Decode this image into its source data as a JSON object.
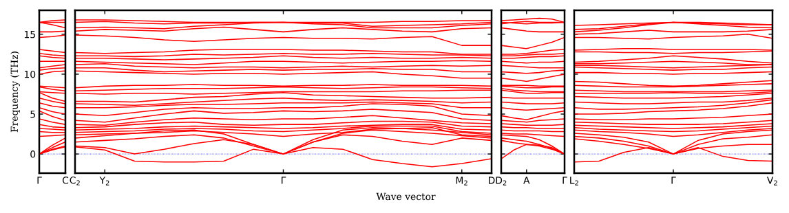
{
  "chart_data": [
    {
      "type": "line",
      "ylabel": "Frequency (THz)",
      "categories": [
        "Γ",
        null,
        "C"
      ],
      "ylim": [
        -2.4,
        18
      ],
      "yticks": [
        0,
        5,
        10,
        15
      ],
      "grid": false,
      "marker": "none",
      "line_style": "solid",
      "ref_lines": [
        {
          "axis": "y",
          "value": 0,
          "color": "#0000ff",
          "line_style": "dotted"
        }
      ],
      "series": [
        {
          "color": "#ff0000",
          "values": [
            0,
            0.5,
            0.9
          ]
        },
        {
          "color": "#ff0000",
          "values": [
            0,
            0.6,
            1.0
          ]
        },
        {
          "color": "#ff0000",
          "values": [
            0,
            0.8,
            1.5
          ]
        },
        {
          "color": "#ff0000",
          "values": [
            0,
            1.1,
            2.0
          ]
        },
        {
          "color": "#ff0000",
          "values": [
            2.2,
            2.3,
            2.4
          ]
        },
        {
          "color": "#ff0000",
          "values": [
            2.8,
            2.7,
            2.7
          ]
        },
        {
          "color": "#ff0000",
          "values": [
            3.2,
            3.1,
            3.0
          ]
        },
        {
          "color": "#ff0000",
          "values": [
            3.7,
            3.4,
            3.3
          ]
        },
        {
          "color": "#ff0000",
          "values": [
            4.4,
            4.0,
            3.7
          ]
        },
        {
          "color": "#ff0000",
          "values": [
            5.4,
            4.7,
            4.2
          ]
        },
        {
          "color": "#ff0000",
          "values": [
            5.8,
            5.3,
            5.0
          ]
        },
        {
          "color": "#ff0000",
          "values": [
            6.4,
            6.0,
            5.8
          ]
        },
        {
          "color": "#ff0000",
          "values": [
            7.0,
            6.6,
            6.3
          ]
        },
        {
          "color": "#ff0000",
          "values": [
            7.7,
            7.0,
            6.6
          ]
        },
        {
          "color": "#ff0000",
          "values": [
            7.8,
            7.7,
            7.6
          ]
        },
        {
          "color": "#ff0000",
          "values": [
            8.4,
            8.1,
            7.9
          ]
        },
        {
          "color": "#ff0000",
          "values": [
            8.5,
            8.4,
            8.3
          ]
        },
        {
          "color": "#ff0000",
          "values": [
            10.0,
            10.3,
            10.4
          ]
        },
        {
          "color": "#ff0000",
          "values": [
            10.5,
            10.7,
            10.8
          ]
        },
        {
          "color": "#ff0000",
          "values": [
            10.8,
            11.0,
            11.2
          ]
        },
        {
          "color": "#ff0000",
          "values": [
            11.6,
            11.6,
            11.6
          ]
        },
        {
          "color": "#ff0000",
          "values": [
            12.3,
            12.1,
            12.0
          ]
        },
        {
          "color": "#ff0000",
          "values": [
            12.6,
            12.4,
            12.3
          ]
        },
        {
          "color": "#ff0000",
          "values": [
            13.1,
            12.9,
            12.7
          ]
        },
        {
          "color": "#ff0000",
          "values": [
            14.6,
            14.7,
            14.9
          ]
        },
        {
          "color": "#ff0000",
          "values": [
            15.3,
            15.3,
            15.4
          ]
        },
        {
          "color": "#ff0000",
          "values": [
            16.5,
            16.2,
            15.8
          ]
        },
        {
          "color": "#ff0000",
          "values": [
            16.5,
            16.5,
            16.5
          ]
        },
        {
          "color": "#ff0000",
          "values": [
            16.5,
            16.7,
            16.8
          ]
        }
      ]
    },
    {
      "type": "line",
      "xlabel": "Wave vector",
      "categories": [
        "C$_{2}$",
        "Y$_{2}$",
        null,
        null,
        null,
        null,
        null,
        "Γ",
        null,
        null,
        null,
        null,
        null,
        "M$_{2}$",
        "D"
      ],
      "ylim": [
        -2.4,
        18
      ],
      "yticks": [
        0,
        5,
        10,
        15
      ],
      "tick_labels": "x",
      "grid": false,
      "marker": "none",
      "line_style": "solid",
      "ref_lines": [
        {
          "axis": "y",
          "value": 0,
          "color": "#0000ff",
          "line_style": "dotted"
        }
      ],
      "series": [
        {
          "color": "#ff0000",
          "values": [
            0.9,
            0.5,
            -0.9,
            -1.0,
            -1.0,
            -0.9,
            0.6,
            0,
            0.8,
            0.6,
            -0.7,
            -1.2,
            -1.6,
            -1.2,
            -0.6
          ]
        },
        {
          "color": "#ff0000",
          "values": [
            1.0,
            0.8,
            0.0,
            0.6,
            1.3,
            1.8,
            1.2,
            0,
            1.5,
            2.4,
            2.2,
            1.6,
            1.2,
            2.0,
            1.7
          ]
        },
        {
          "color": "#ff0000",
          "values": [
            1.5,
            1.7,
            1.9,
            2.2,
            2.4,
            2.0,
            1.0,
            0,
            1.5,
            2.6,
            3.0,
            2.8,
            2.6,
            2.3,
            2.0
          ]
        },
        {
          "color": "#ff0000",
          "values": [
            2.0,
            2.3,
            2.6,
            2.9,
            3.0,
            2.5,
            1.2,
            0,
            1.8,
            3.0,
            3.3,
            3.2,
            3.0,
            2.7,
            2.4
          ]
        },
        {
          "color": "#ff0000",
          "values": [
            2.4,
            2.5,
            2.6,
            2.7,
            2.9,
            2.7,
            2.5,
            2.2,
            2.5,
            2.7,
            3.1,
            3.2,
            3.3,
            2.4,
            2.2
          ]
        },
        {
          "color": "#ff0000",
          "values": [
            2.7,
            2.8,
            2.9,
            3.1,
            3.2,
            3.1,
            2.9,
            2.8,
            3.0,
            3.2,
            3.5,
            3.5,
            3.5,
            2.8,
            2.6
          ]
        },
        {
          "color": "#ff0000",
          "values": [
            3.0,
            3.1,
            3.2,
            3.4,
            3.5,
            3.4,
            3.3,
            3.2,
            3.3,
            3.5,
            3.6,
            3.7,
            3.7,
            3.1,
            3.0
          ]
        },
        {
          "color": "#ff0000",
          "values": [
            3.3,
            3.4,
            3.7,
            3.9,
            4.0,
            3.7,
            3.6,
            3.7,
            3.7,
            3.9,
            4.1,
            4.1,
            4.0,
            3.5,
            3.4
          ]
        },
        {
          "color": "#ff0000",
          "values": [
            3.7,
            3.6,
            4.0,
            4.3,
            4.5,
            4.4,
            4.3,
            4.4,
            4.4,
            4.6,
            4.8,
            4.5,
            4.2,
            3.9,
            3.8
          ]
        },
        {
          "color": "#ff0000",
          "values": [
            4.2,
            4.0,
            4.5,
            5.0,
            5.4,
            5.1,
            5.2,
            5.4,
            5.3,
            5.4,
            5.6,
            5.4,
            5.2,
            4.4,
            4.2
          ]
        },
        {
          "color": "#ff0000",
          "values": [
            5.0,
            4.8,
            5.2,
            5.6,
            5.8,
            5.7,
            5.7,
            5.8,
            5.8,
            6.0,
            6.3,
            6.2,
            6.0,
            5.0,
            4.8
          ]
        },
        {
          "color": "#ff0000",
          "values": [
            5.8,
            5.8,
            5.9,
            6.1,
            6.2,
            6.2,
            6.3,
            6.4,
            6.4,
            6.4,
            6.5,
            6.4,
            6.3,
            5.8,
            5.8
          ]
        },
        {
          "color": "#ff0000",
          "values": [
            6.3,
            6.2,
            6.1,
            6.3,
            6.5,
            6.7,
            6.9,
            7.0,
            6.8,
            6.7,
            6.8,
            6.7,
            6.6,
            6.4,
            6.5
          ]
        },
        {
          "color": "#ff0000",
          "values": [
            6.6,
            6.6,
            6.5,
            6.8,
            7.1,
            7.2,
            7.5,
            7.7,
            7.4,
            7.3,
            7.2,
            7.1,
            7.0,
            7.0,
            7.1
          ]
        },
        {
          "color": "#ff0000",
          "values": [
            7.6,
            7.5,
            7.6,
            7.6,
            7.5,
            7.6,
            7.7,
            7.8,
            7.8,
            7.8,
            7.8,
            7.9,
            7.9,
            8.0,
            8.0
          ]
        },
        {
          "color": "#ff0000",
          "values": [
            7.9,
            8.0,
            8.1,
            8.2,
            8.2,
            8.2,
            8.3,
            8.4,
            8.3,
            8.2,
            8.3,
            8.4,
            8.4,
            8.3,
            8.2
          ]
        },
        {
          "color": "#ff0000",
          "values": [
            8.3,
            8.5,
            8.6,
            8.6,
            8.7,
            8.6,
            8.6,
            8.5,
            8.6,
            8.6,
            8.7,
            8.6,
            8.6,
            8.6,
            8.5
          ]
        },
        {
          "color": "#ff0000",
          "values": [
            10.4,
            10.3,
            10.2,
            10.1,
            10.0,
            10.1,
            10.1,
            10.0,
            10.1,
            10.2,
            10.3,
            10.0,
            9.8,
            9.5,
            9.5
          ]
        },
        {
          "color": "#ff0000",
          "values": [
            10.8,
            10.8,
            10.5,
            10.3,
            10.4,
            10.5,
            10.6,
            10.5,
            10.6,
            10.6,
            10.7,
            10.6,
            10.6,
            10.3,
            10.3
          ]
        },
        {
          "color": "#ff0000",
          "values": [
            11.2,
            11.3,
            11.0,
            10.9,
            10.8,
            10.9,
            10.9,
            10.8,
            10.9,
            11.0,
            10.9,
            11.0,
            11.1,
            11.0,
            11.1
          ]
        },
        {
          "color": "#ff0000",
          "values": [
            11.6,
            11.5,
            11.4,
            11.3,
            11.2,
            11.4,
            11.6,
            11.6,
            11.5,
            11.4,
            11.5,
            11.6,
            11.6,
            11.7,
            11.6
          ]
        },
        {
          "color": "#ff0000",
          "values": [
            12.0,
            12.0,
            11.9,
            11.8,
            11.9,
            12.0,
            12.1,
            12.3,
            12.1,
            12.0,
            12.1,
            12.0,
            12.0,
            12.1,
            12.0
          ]
        },
        {
          "color": "#ff0000",
          "values": [
            12.3,
            12.3,
            12.2,
            12.3,
            12.5,
            12.4,
            12.5,
            12.6,
            12.5,
            12.5,
            12.6,
            12.5,
            12.4,
            12.4,
            12.3
          ]
        },
        {
          "color": "#ff0000",
          "values": [
            12.7,
            12.6,
            12.7,
            12.8,
            13.0,
            13.1,
            13.1,
            13.1,
            13.0,
            13.0,
            12.9,
            12.8,
            12.8,
            12.5,
            12.5
          ]
        },
        {
          "color": "#ff0000",
          "values": [
            14.9,
            14.8,
            14.6,
            14.3,
            14.1,
            14.3,
            14.5,
            14.6,
            14.5,
            14.5,
            14.4,
            14.6,
            14.7,
            13.6,
            13.6
          ]
        },
        {
          "color": "#ff0000",
          "values": [
            15.4,
            15.6,
            15.5,
            15.4,
            15.7,
            15.9,
            15.6,
            15.3,
            15.6,
            15.8,
            15.6,
            15.4,
            15.3,
            15.7,
            15.8
          ]
        },
        {
          "color": "#ff0000",
          "values": [
            15.8,
            15.9,
            15.8,
            15.7,
            16.0,
            16.2,
            16.4,
            16.5,
            16.3,
            16.2,
            15.8,
            15.8,
            15.8,
            16.1,
            16.3
          ]
        },
        {
          "color": "#ff0000",
          "values": [
            16.5,
            16.6,
            16.4,
            16.3,
            16.4,
            16.4,
            16.5,
            16.5,
            16.4,
            16.4,
            16.0,
            16.1,
            16.2,
            16.3,
            16.5
          ]
        },
        {
          "color": "#ff0000",
          "values": [
            16.8,
            16.8,
            16.7,
            16.6,
            16.5,
            16.5,
            16.5,
            16.5,
            16.5,
            16.5,
            16.5,
            16.6,
            16.6,
            16.7,
            16.7
          ]
        }
      ]
    },
    {
      "type": "line",
      "categories": [
        "D$_{2}$",
        null,
        "A",
        null,
        null,
        "Γ"
      ],
      "ylim": [
        -2.4,
        18
      ],
      "yticks": [
        0,
        5,
        10,
        15
      ],
      "tick_labels": "x",
      "grid": false,
      "marker": "none",
      "line_style": "solid",
      "ref_lines": [
        {
          "axis": "y",
          "value": 0,
          "color": "#0000ff",
          "line_style": "dotted"
        }
      ],
      "series": [
        {
          "color": "#ff0000",
          "values": [
            -0.6,
            0.5,
            1.2,
            1.1,
            0.8,
            0
          ]
        },
        {
          "color": "#ff0000",
          "values": [
            1.7,
            1.4,
            1.2,
            1.0,
            0.6,
            0
          ]
        },
        {
          "color": "#ff0000",
          "values": [
            2.0,
            1.8,
            1.6,
            1.2,
            0.7,
            0
          ]
        },
        {
          "color": "#ff0000",
          "values": [
            2.4,
            2.3,
            2.2,
            1.8,
            1.0,
            0
          ]
        },
        {
          "color": "#ff0000",
          "values": [
            2.6,
            2.5,
            2.5,
            2.4,
            2.3,
            2.2
          ]
        },
        {
          "color": "#ff0000",
          "values": [
            3.0,
            2.9,
            2.9,
            2.9,
            2.8,
            2.8
          ]
        },
        {
          "color": "#ff0000",
          "values": [
            3.4,
            3.3,
            3.3,
            3.2,
            3.2,
            3.2
          ]
        },
        {
          "color": "#ff0000",
          "values": [
            3.8,
            3.7,
            3.6,
            3.6,
            3.6,
            3.7
          ]
        },
        {
          "color": "#ff0000",
          "values": [
            4.2,
            4.1,
            4.0,
            4.2,
            4.3,
            4.4
          ]
        },
        {
          "color": "#ff0000",
          "values": [
            4.8,
            4.5,
            4.3,
            4.7,
            5.1,
            5.4
          ]
        },
        {
          "color": "#ff0000",
          "values": [
            5.8,
            5.6,
            5.5,
            5.6,
            5.7,
            5.8
          ]
        },
        {
          "color": "#ff0000",
          "values": [
            6.5,
            6.4,
            6.3,
            6.3,
            6.3,
            6.4
          ]
        },
        {
          "color": "#ff0000",
          "values": [
            7.1,
            7.0,
            7.0,
            7.0,
            7.0,
            7.0
          ]
        },
        {
          "color": "#ff0000",
          "values": [
            8.0,
            7.8,
            7.6,
            7.6,
            7.7,
            7.7
          ]
        },
        {
          "color": "#ff0000",
          "values": [
            8.2,
            8.0,
            7.9,
            7.8,
            7.8,
            7.8
          ]
        },
        {
          "color": "#ff0000",
          "values": [
            8.5,
            8.4,
            8.3,
            8.3,
            8.4,
            8.4
          ]
        },
        {
          "color": "#ff0000",
          "values": [
            8.6,
            8.6,
            8.6,
            8.5,
            8.5,
            8.5
          ]
        },
        {
          "color": "#ff0000",
          "values": [
            9.5,
            9.3,
            9.1,
            9.4,
            9.7,
            10.0
          ]
        },
        {
          "color": "#ff0000",
          "values": [
            10.3,
            10.2,
            10.1,
            10.2,
            10.4,
            10.5
          ]
        },
        {
          "color": "#ff0000",
          "values": [
            11.1,
            11.0,
            10.9,
            10.8,
            10.8,
            10.8
          ]
        },
        {
          "color": "#ff0000",
          "values": [
            11.6,
            11.5,
            11.4,
            11.5,
            11.5,
            11.6
          ]
        },
        {
          "color": "#ff0000",
          "values": [
            12.0,
            12.0,
            12.1,
            12.2,
            12.2,
            12.3
          ]
        },
        {
          "color": "#ff0000",
          "values": [
            12.3,
            12.3,
            12.4,
            12.5,
            12.5,
            12.6
          ]
        },
        {
          "color": "#ff0000",
          "values": [
            12.5,
            12.5,
            12.6,
            12.8,
            13.0,
            13.1
          ]
        },
        {
          "color": "#ff0000",
          "values": [
            13.6,
            13.4,
            13.2,
            13.6,
            14.0,
            14.6
          ]
        },
        {
          "color": "#ff0000",
          "values": [
            15.8,
            15.6,
            15.4,
            15.3,
            15.3,
            15.3
          ]
        },
        {
          "color": "#ff0000",
          "values": [
            16.3,
            16.5,
            16.6,
            16.5,
            16.5,
            16.5
          ]
        },
        {
          "color": "#ff0000",
          "values": [
            16.5,
            16.4,
            16.3,
            16.4,
            16.4,
            16.5
          ]
        },
        {
          "color": "#ff0000",
          "values": [
            16.7,
            16.8,
            16.9,
            17.0,
            16.9,
            16.5
          ]
        }
      ]
    },
    {
      "type": "line",
      "categories": [
        "L$_{2}$",
        null,
        null,
        null,
        "Γ",
        null,
        null,
        null,
        "V$_{2}$"
      ],
      "ylim": [
        -2.4,
        18
      ],
      "yticks": [
        0,
        5,
        10,
        15
      ],
      "tick_labels": "x",
      "grid": false,
      "marker": "none",
      "line_style": "solid",
      "ref_lines": [
        {
          "axis": "y",
          "value": 0,
          "color": "#0000ff",
          "line_style": "dotted"
        }
      ],
      "series": [
        {
          "color": "#ff0000",
          "values": [
            -1.0,
            -0.9,
            0.2,
            0.8,
            0,
            0.8,
            -0.3,
            -0.8,
            -0.9
          ]
        },
        {
          "color": "#ff0000",
          "values": [
            1.9,
            1.6,
            1.2,
            0.7,
            0,
            0.7,
            1.0,
            1.2,
            1.2
          ]
        },
        {
          "color": "#ff0000",
          "values": [
            2.2,
            2.0,
            1.6,
            1.0,
            0,
            1.2,
            1.9,
            2.1,
            2.4
          ]
        },
        {
          "color": "#ff0000",
          "values": [
            2.6,
            2.4,
            2.1,
            1.5,
            0,
            1.7,
            2.5,
            2.8,
            3.0
          ]
        },
        {
          "color": "#ff0000",
          "values": [
            3.0,
            2.8,
            2.7,
            2.5,
            2.2,
            2.4,
            2.7,
            3.0,
            3.2
          ]
        },
        {
          "color": "#ff0000",
          "values": [
            3.3,
            3.1,
            3.0,
            2.9,
            2.8,
            2.9,
            3.1,
            3.3,
            3.5
          ]
        },
        {
          "color": "#ff0000",
          "values": [
            3.6,
            3.5,
            3.4,
            3.3,
            3.2,
            3.3,
            3.4,
            3.6,
            3.8
          ]
        },
        {
          "color": "#ff0000",
          "values": [
            4.0,
            3.9,
            3.8,
            3.7,
            3.7,
            3.7,
            3.8,
            4.0,
            4.2
          ]
        },
        {
          "color": "#ff0000",
          "values": [
            4.4,
            4.3,
            4.3,
            4.4,
            4.4,
            4.5,
            4.6,
            4.8,
            5.0
          ]
        },
        {
          "color": "#ff0000",
          "values": [
            5.0,
            5.0,
            5.1,
            5.3,
            5.4,
            5.5,
            5.7,
            6.0,
            6.4
          ]
        },
        {
          "color": "#ff0000",
          "values": [
            5.8,
            5.6,
            5.6,
            5.7,
            5.8,
            5.9,
            6.1,
            6.4,
            6.8
          ]
        },
        {
          "color": "#ff0000",
          "values": [
            6.5,
            6.4,
            6.3,
            6.3,
            6.4,
            6.5,
            6.5,
            6.7,
            7.0
          ]
        },
        {
          "color": "#ff0000",
          "values": [
            7.2,
            7.1,
            7.0,
            7.0,
            7.0,
            7.1,
            7.2,
            7.4,
            7.6
          ]
        },
        {
          "color": "#ff0000",
          "values": [
            7.6,
            7.6,
            7.6,
            7.6,
            7.7,
            7.6,
            7.6,
            7.6,
            7.8
          ]
        },
        {
          "color": "#ff0000",
          "values": [
            8.0,
            7.9,
            7.8,
            7.8,
            7.8,
            7.8,
            7.8,
            7.9,
            8.0
          ]
        },
        {
          "color": "#ff0000",
          "values": [
            8.6,
            8.5,
            8.4,
            8.4,
            8.4,
            8.5,
            8.6,
            8.7,
            8.8
          ]
        },
        {
          "color": "#ff0000",
          "values": [
            9.1,
            9.0,
            8.8,
            8.6,
            8.5,
            8.6,
            8.8,
            9.0,
            9.2
          ]
        },
        {
          "color": "#ff0000",
          "values": [
            10.2,
            10.2,
            10.1,
            10.1,
            10.0,
            10.1,
            10.1,
            10.2,
            10.3
          ]
        },
        {
          "color": "#ff0000",
          "values": [
            10.9,
            10.8,
            10.7,
            10.6,
            10.5,
            10.6,
            10.6,
            10.8,
            10.9
          ]
        },
        {
          "color": "#ff0000",
          "values": [
            11.1,
            11.1,
            11.0,
            10.9,
            10.8,
            10.9,
            11.0,
            11.1,
            11.2
          ]
        },
        {
          "color": "#ff0000",
          "values": [
            11.3,
            11.3,
            11.4,
            11.5,
            11.6,
            11.5,
            11.4,
            11.2,
            11.2
          ]
        },
        {
          "color": "#ff0000",
          "values": [
            11.5,
            11.6,
            11.8,
            12.0,
            12.3,
            12.1,
            11.9,
            11.6,
            11.4
          ]
        },
        {
          "color": "#ff0000",
          "values": [
            12.8,
            12.8,
            12.7,
            12.7,
            12.6,
            12.7,
            12.7,
            12.8,
            12.9
          ]
        },
        {
          "color": "#ff0000",
          "values": [
            13.0,
            13.1,
            13.2,
            13.2,
            13.1,
            13.1,
            13.1,
            13.1,
            13.0
          ]
        },
        {
          "color": "#ff0000",
          "values": [
            14.6,
            14.6,
            14.5,
            14.4,
            14.6,
            14.7,
            14.8,
            15.0,
            14.5
          ]
        },
        {
          "color": "#ff0000",
          "values": [
            15.0,
            15.1,
            15.3,
            15.5,
            15.3,
            15.3,
            15.3,
            15.4,
            15.6
          ]
        },
        {
          "color": "#ff0000",
          "values": [
            15.3,
            15.5,
            15.8,
            16.2,
            16.5,
            16.3,
            16.1,
            15.9,
            15.8
          ]
        },
        {
          "color": "#ff0000",
          "values": [
            15.6,
            15.7,
            16.0,
            16.3,
            16.5,
            16.4,
            16.3,
            16.2,
            16.2
          ]
        },
        {
          "color": "#ff0000",
          "values": [
            16.1,
            16.2,
            16.3,
            16.4,
            16.5,
            16.5,
            16.4,
            16.3,
            16.2
          ]
        }
      ]
    }
  ]
}
